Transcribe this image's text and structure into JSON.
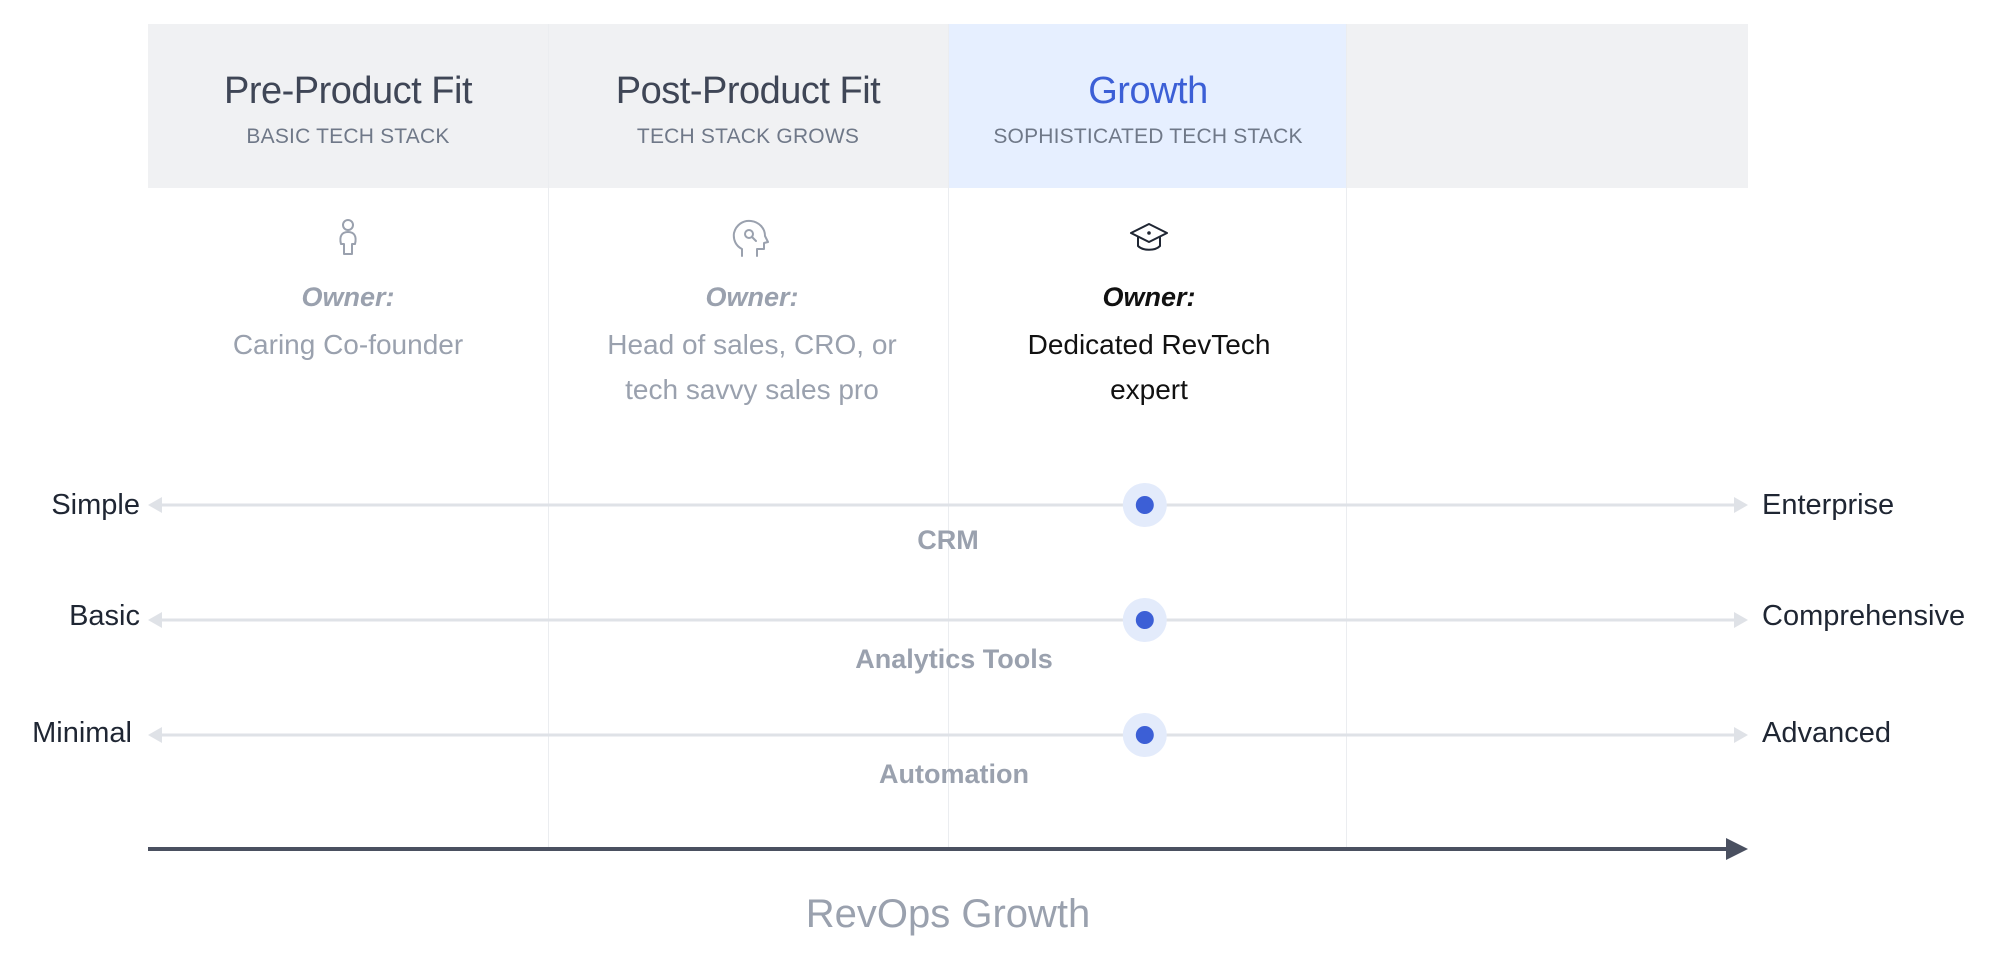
{
  "stages": [
    {
      "title": "Pre-Product Fit",
      "subtitle": "BASIC TECH STACK",
      "icon": "person-icon",
      "owner_label": "Owner:",
      "owner_lines": [
        "Caring Co-founder"
      ],
      "active": false
    },
    {
      "title": "Post-Product Fit",
      "subtitle": "TECH STACK GROWS",
      "icon": "head-gear-icon",
      "owner_label": "Owner:",
      "owner_lines": [
        "Head of sales, CRO, or",
        "tech savvy sales pro"
      ],
      "active": false
    },
    {
      "title": "Growth",
      "subtitle": "SOPHISTICATED TECH STACK",
      "icon": "graduation-cap-icon",
      "owner_label": "Owner:",
      "owner_lines": [
        "Dedicated RevTech",
        "expert"
      ],
      "active": true
    }
  ],
  "scales": [
    {
      "name": "CRM",
      "left_label": "Simple",
      "right_label": "Enterprise",
      "level": 0.623
    },
    {
      "name": "Analytics Tools",
      "left_label": "Basic",
      "right_label": "Comprehensive",
      "level": 0.623
    },
    {
      "name": "Automation",
      "left_label": "Minimal",
      "right_label": "Advanced",
      "level": 0.623
    }
  ],
  "axis": {
    "title": "RevOps Growth"
  },
  "colors": {
    "accent": "#3c5fd6",
    "header_bg": "#f0f1f3",
    "active_header_bg": "#e6efff",
    "track": "#dfe2e7",
    "axis": "#4a5060",
    "muted_text": "#9aa1ae"
  }
}
